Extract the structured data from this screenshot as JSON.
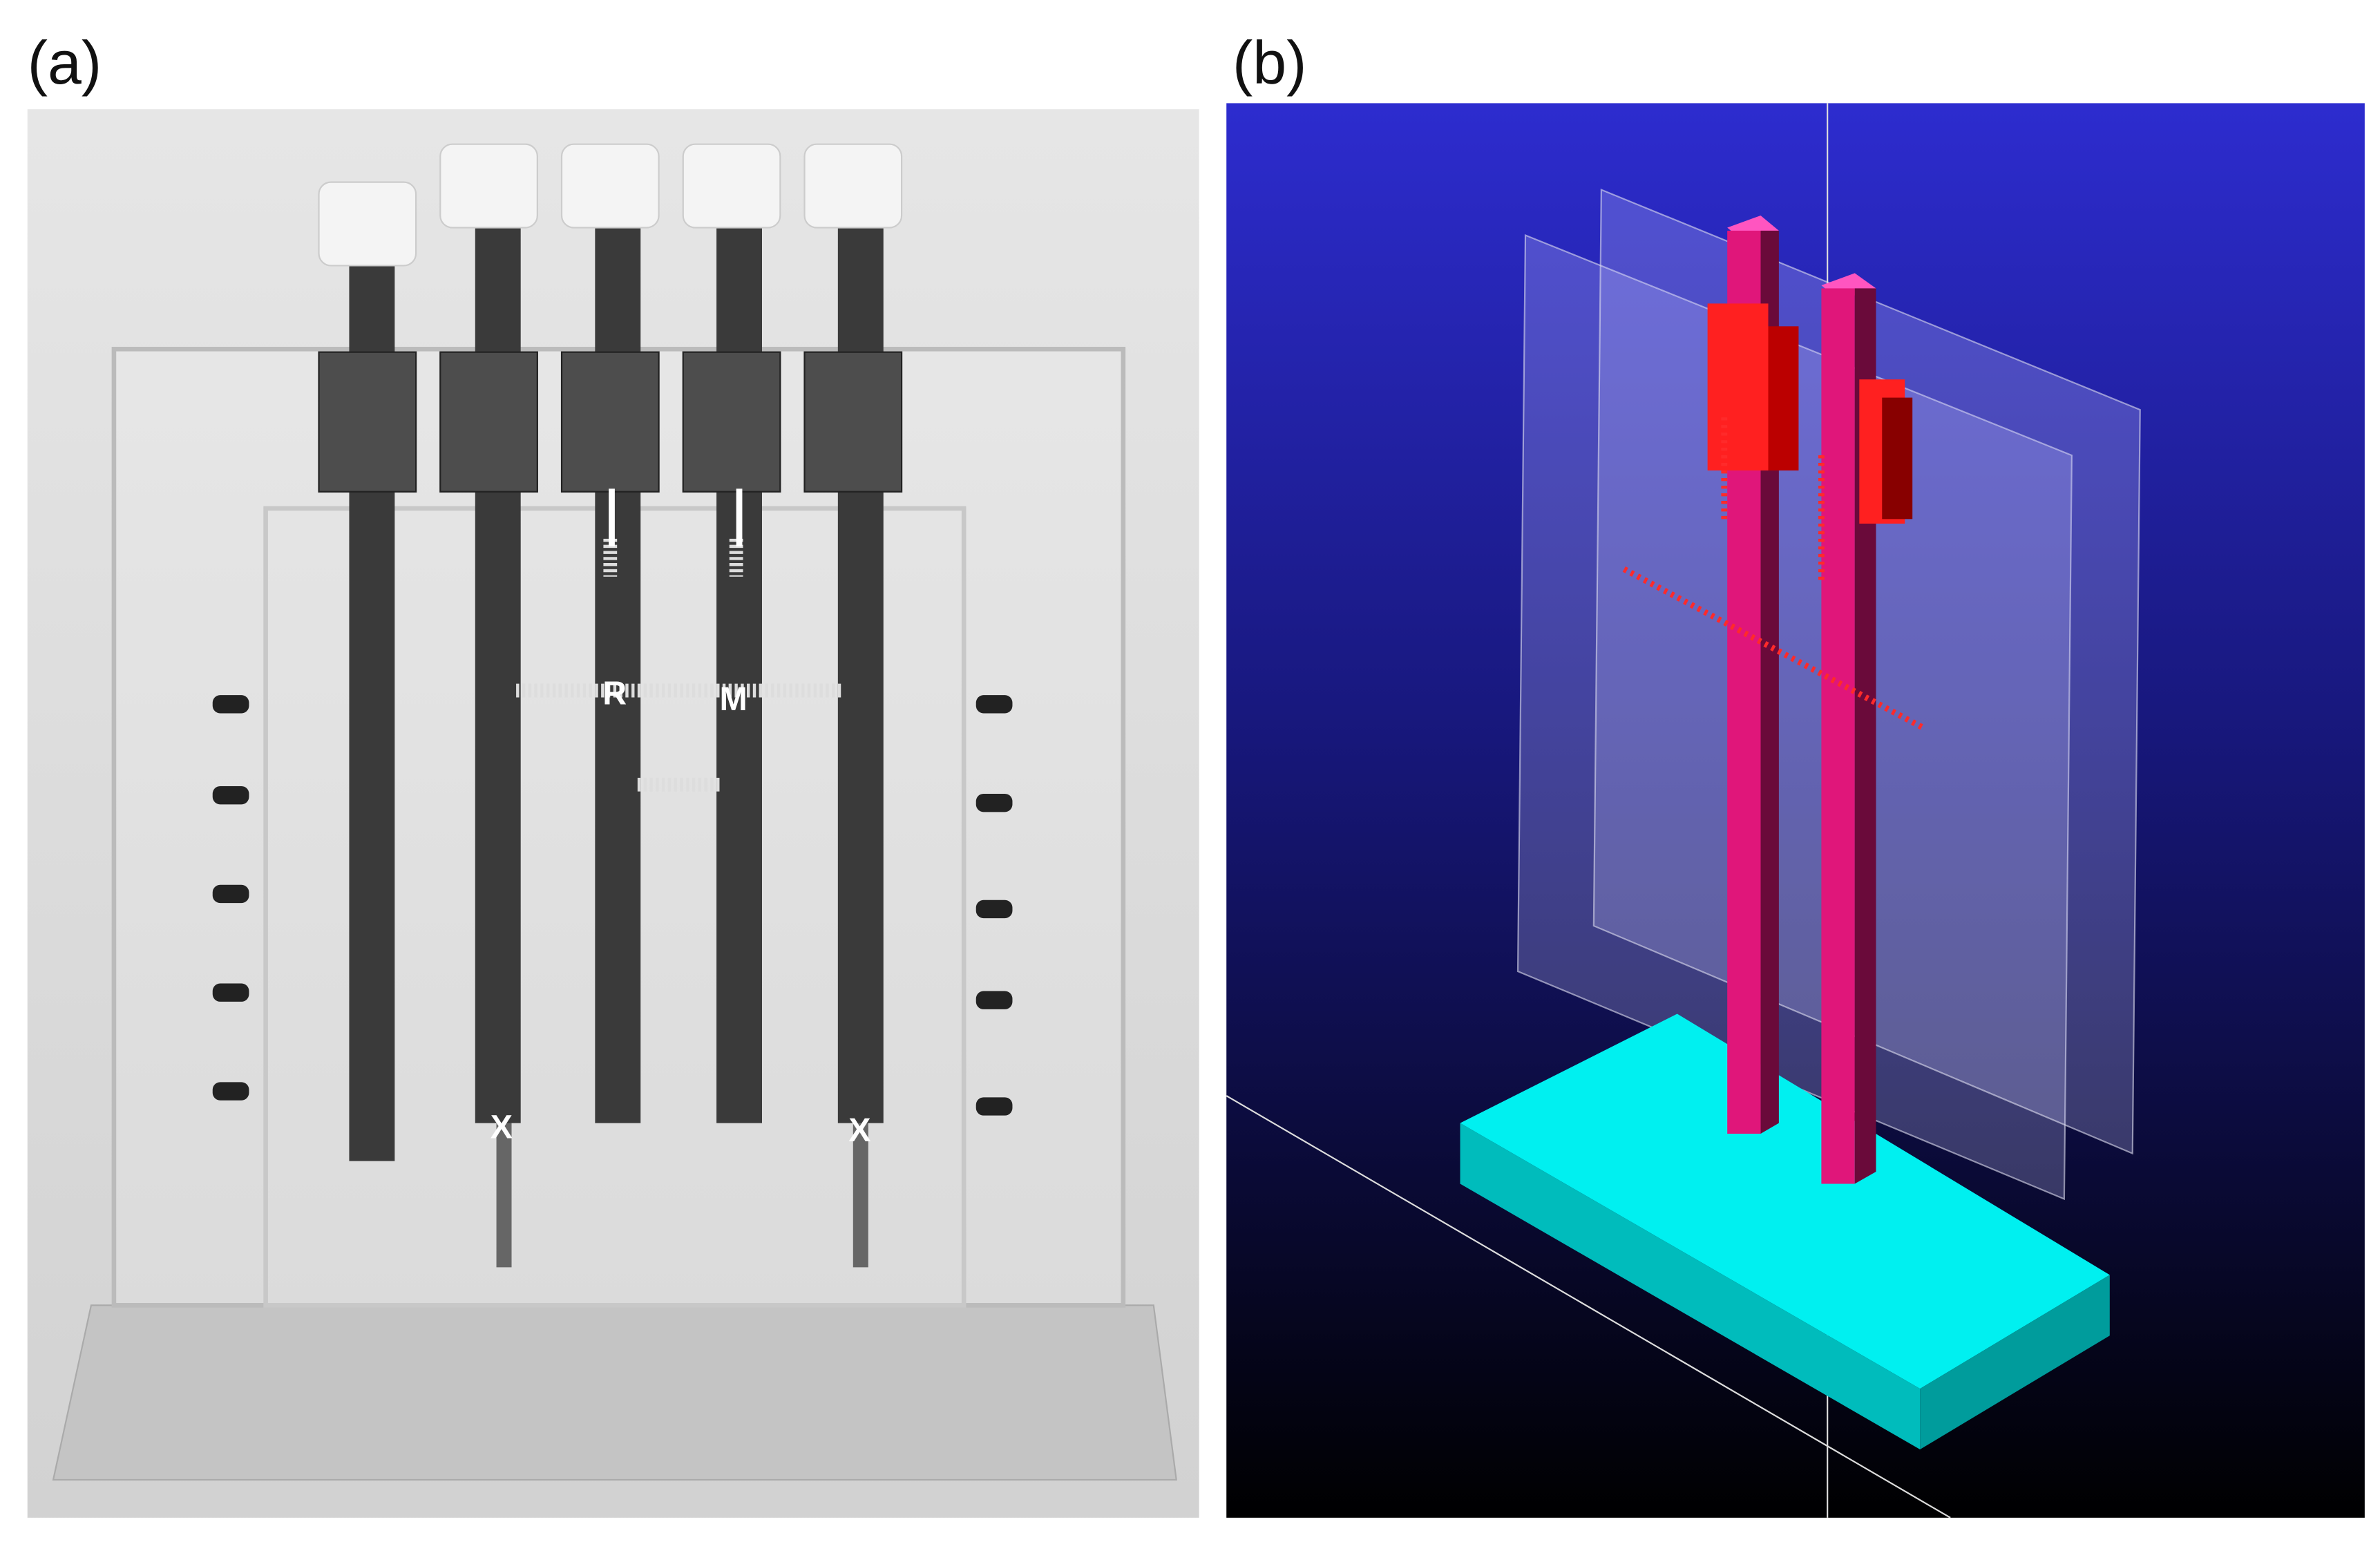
{
  "panel_a": {
    "label": "(a)",
    "markers": {
      "r": "R",
      "m": "M",
      "x_left": "X",
      "x_right": "X"
    }
  },
  "panel_b": {
    "label": "(b)"
  },
  "colors": {
    "rods_3d": "#e0167a",
    "base_3d": "#00e5e5",
    "springs_3d": "#ff2020",
    "background_top": "#2d2ccf",
    "background_bottom": "#000000"
  }
}
